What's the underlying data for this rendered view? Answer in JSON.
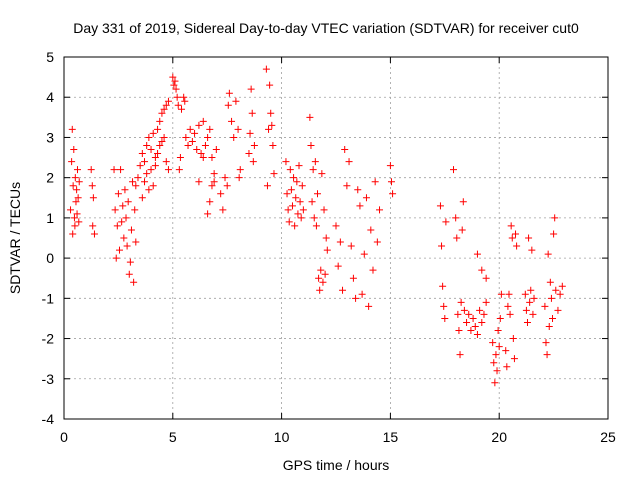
{
  "chart_data": {
    "type": "scatter",
    "title": "Day 331 of 2019, Sidereal Day-to-day VTEC variation (SDTVAR) for receiver cut0",
    "xlabel": "GPS time / hours",
    "ylabel": "SDTVAR / TECUs",
    "xlim": [
      0,
      25
    ],
    "ylim": [
      -4,
      5
    ],
    "xticks": [
      "0",
      "5",
      "10",
      "15",
      "20",
      "25"
    ],
    "yticks": [
      "-4",
      "-3",
      "-2",
      "-1",
      "0",
      "1",
      "2",
      "3",
      "4",
      "5"
    ],
    "grid": true,
    "marker": "+",
    "color": "#ff0000",
    "series": [
      {
        "name": "SDTVAR",
        "points": [
          [
            0.3,
            1.2
          ],
          [
            0.35,
            2.4
          ],
          [
            0.38,
            3.2
          ],
          [
            0.4,
            0.6
          ],
          [
            0.42,
            1.8
          ],
          [
            0.45,
            2.7
          ],
          [
            0.48,
            1.0
          ],
          [
            0.5,
            0.8
          ],
          [
            0.52,
            2.0
          ],
          [
            0.55,
            1.4
          ],
          [
            0.58,
            1.7
          ],
          [
            0.6,
            1.1
          ],
          [
            0.62,
            2.2
          ],
          [
            0.65,
            1.5
          ],
          [
            0.68,
            0.9
          ],
          [
            0.7,
            1.9
          ],
          [
            1.25,
            2.2
          ],
          [
            1.3,
            1.8
          ],
          [
            1.32,
            0.8
          ],
          [
            1.35,
            1.5
          ],
          [
            1.4,
            0.6
          ],
          [
            2.3,
            2.2
          ],
          [
            2.35,
            1.2
          ],
          [
            2.4,
            0.0
          ],
          [
            2.45,
            0.8
          ],
          [
            2.5,
            1.6
          ],
          [
            2.55,
            0.2
          ],
          [
            2.6,
            2.2
          ],
          [
            2.65,
            0.9
          ],
          [
            2.7,
            1.3
          ],
          [
            2.75,
            0.5
          ],
          [
            2.8,
            1.7
          ],
          [
            2.85,
            1.0
          ],
          [
            2.9,
            0.3
          ],
          [
            2.95,
            1.4
          ],
          [
            3.0,
            -0.4
          ],
          [
            3.05,
            -0.1
          ],
          [
            3.1,
            0.7
          ],
          [
            3.15,
            1.9
          ],
          [
            3.2,
            -0.6
          ],
          [
            3.25,
            1.2
          ],
          [
            3.3,
            0.4
          ],
          [
            3.3,
            1.8
          ],
          [
            3.4,
            2.0
          ],
          [
            3.5,
            2.3
          ],
          [
            3.6,
            2.6
          ],
          [
            3.7,
            2.4
          ],
          [
            3.8,
            2.8
          ],
          [
            3.9,
            3.0
          ],
          [
            4.0,
            2.7
          ],
          [
            4.1,
            3.1
          ],
          [
            4.2,
            2.5
          ],
          [
            4.3,
            3.2
          ],
          [
            4.4,
            3.4
          ],
          [
            4.5,
            3.6
          ],
          [
            4.6,
            3.7
          ],
          [
            4.7,
            3.8
          ],
          [
            4.8,
            3.9
          ],
          [
            3.6,
            1.5
          ],
          [
            3.7,
            1.9
          ],
          [
            3.8,
            2.1
          ],
          [
            3.9,
            1.7
          ],
          [
            4.0,
            2.2
          ],
          [
            4.1,
            1.8
          ],
          [
            4.2,
            2.3
          ],
          [
            4.3,
            2.6
          ],
          [
            4.4,
            2.8
          ],
          [
            4.5,
            2.9
          ],
          [
            4.6,
            3.0
          ],
          [
            4.7,
            2.4
          ],
          [
            4.8,
            2.2
          ],
          [
            5.0,
            4.5
          ],
          [
            5.05,
            4.3
          ],
          [
            5.1,
            4.4
          ],
          [
            5.15,
            4.2
          ],
          [
            5.2,
            4.0
          ],
          [
            5.25,
            3.8
          ],
          [
            5.3,
            2.2
          ],
          [
            5.35,
            2.5
          ],
          [
            5.4,
            3.7
          ],
          [
            5.5,
            4.0
          ],
          [
            5.55,
            3.9
          ],
          [
            5.6,
            3.0
          ],
          [
            5.7,
            2.8
          ],
          [
            5.8,
            3.2
          ],
          [
            5.9,
            2.9
          ],
          [
            6.0,
            3.1
          ],
          [
            6.1,
            2.7
          ],
          [
            6.2,
            3.3
          ],
          [
            6.3,
            2.6
          ],
          [
            6.4,
            3.4
          ],
          [
            6.5,
            2.8
          ],
          [
            6.6,
            3.0
          ],
          [
            6.7,
            3.2
          ],
          [
            6.8,
            2.5
          ],
          [
            6.9,
            1.9
          ],
          [
            7.0,
            2.7
          ],
          [
            6.2,
            1.9
          ],
          [
            6.4,
            2.5
          ],
          [
            6.6,
            1.1
          ],
          [
            6.7,
            1.4
          ],
          [
            6.8,
            1.8
          ],
          [
            6.9,
            2.1
          ],
          [
            7.2,
            1.6
          ],
          [
            7.3,
            1.2
          ],
          [
            7.4,
            2.0
          ],
          [
            7.5,
            1.8
          ],
          [
            7.55,
            3.8
          ],
          [
            7.6,
            4.1
          ],
          [
            7.7,
            3.4
          ],
          [
            7.8,
            3.0
          ],
          [
            7.9,
            3.9
          ],
          [
            8.0,
            3.2
          ],
          [
            8.05,
            2.0
          ],
          [
            8.1,
            2.2
          ],
          [
            8.5,
            2.6
          ],
          [
            8.55,
            3.1
          ],
          [
            8.6,
            4.2
          ],
          [
            8.65,
            3.6
          ],
          [
            8.7,
            2.4
          ],
          [
            8.75,
            2.8
          ],
          [
            9.3,
            4.7
          ],
          [
            9.35,
            1.8
          ],
          [
            9.4,
            3.2
          ],
          [
            9.45,
            4.3
          ],
          [
            9.5,
            3.6
          ],
          [
            9.55,
            3.3
          ],
          [
            9.6,
            2.8
          ],
          [
            9.65,
            2.1
          ],
          [
            10.2,
            2.4
          ],
          [
            10.25,
            1.6
          ],
          [
            10.3,
            1.2
          ],
          [
            10.35,
            0.9
          ],
          [
            10.4,
            2.2
          ],
          [
            10.45,
            1.7
          ],
          [
            10.5,
            1.3
          ],
          [
            10.55,
            2.0
          ],
          [
            10.6,
            0.8
          ],
          [
            10.65,
            1.5
          ],
          [
            10.7,
            1.9
          ],
          [
            10.75,
            1.1
          ],
          [
            10.8,
            2.3
          ],
          [
            10.85,
            1.4
          ],
          [
            10.9,
            1.0
          ],
          [
            10.95,
            1.8
          ],
          [
            11.0,
            1.2
          ],
          [
            11.3,
            3.5
          ],
          [
            11.35,
            2.8
          ],
          [
            11.4,
            1.4
          ],
          [
            11.45,
            2.2
          ],
          [
            11.5,
            1.0
          ],
          [
            11.55,
            2.4
          ],
          [
            11.6,
            0.8
          ],
          [
            11.65,
            1.6
          ],
          [
            11.7,
            -0.5
          ],
          [
            11.75,
            -0.8
          ],
          [
            11.8,
            -0.3
          ],
          [
            11.85,
            2.1
          ],
          [
            11.9,
            -0.6
          ],
          [
            11.95,
            1.2
          ],
          [
            12.0,
            -0.4
          ],
          [
            12.05,
            0.5
          ],
          [
            12.1,
            0.2
          ],
          [
            12.5,
            0.8
          ],
          [
            12.6,
            -0.2
          ],
          [
            12.7,
            0.4
          ],
          [
            12.8,
            -0.8
          ],
          [
            12.9,
            2.7
          ],
          [
            13.0,
            1.8
          ],
          [
            13.1,
            2.4
          ],
          [
            13.2,
            0.3
          ],
          [
            13.3,
            -0.5
          ],
          [
            13.4,
            -1.0
          ],
          [
            13.5,
            1.7
          ],
          [
            13.6,
            1.3
          ],
          [
            13.7,
            -0.9
          ],
          [
            13.8,
            0.1
          ],
          [
            13.9,
            1.5
          ],
          [
            14.0,
            -1.2
          ],
          [
            14.1,
            0.7
          ],
          [
            14.2,
            -0.3
          ],
          [
            14.3,
            1.9
          ],
          [
            14.4,
            0.4
          ],
          [
            14.5,
            1.2
          ],
          [
            15.0,
            2.3
          ],
          [
            15.05,
            1.9
          ],
          [
            15.1,
            1.6
          ],
          [
            17.3,
            1.3
          ],
          [
            17.35,
            0.3
          ],
          [
            17.4,
            -0.7
          ],
          [
            17.45,
            -1.2
          ],
          [
            17.5,
            -1.5
          ],
          [
            17.55,
            0.9
          ],
          [
            17.9,
            2.2
          ],
          [
            18.0,
            1.0
          ],
          [
            18.05,
            0.5
          ],
          [
            18.1,
            -1.4
          ],
          [
            18.15,
            -1.8
          ],
          [
            18.2,
            -2.4
          ],
          [
            18.25,
            -1.1
          ],
          [
            18.3,
            0.7
          ],
          [
            18.35,
            1.4
          ],
          [
            18.4,
            -1.3
          ],
          [
            18.5,
            -1.6
          ],
          [
            18.6,
            -1.4
          ],
          [
            18.7,
            -1.8
          ],
          [
            18.8,
            -1.5
          ],
          [
            18.9,
            -1.7
          ],
          [
            19.0,
            -1.9
          ],
          [
            19.1,
            -1.3
          ],
          [
            19.2,
            -1.6
          ],
          [
            19.3,
            -1.4
          ],
          [
            19.4,
            -1.1
          ],
          [
            19.0,
            0.1
          ],
          [
            19.2,
            -0.3
          ],
          [
            19.4,
            -0.5
          ],
          [
            19.7,
            -2.1
          ],
          [
            19.75,
            -2.6
          ],
          [
            19.8,
            -3.1
          ],
          [
            19.85,
            -2.4
          ],
          [
            19.9,
            -2.8
          ],
          [
            19.95,
            -1.8
          ],
          [
            20.0,
            -2.2
          ],
          [
            20.05,
            -1.5
          ],
          [
            20.1,
            -0.9
          ],
          [
            20.3,
            -2.3
          ],
          [
            20.35,
            -2.7
          ],
          [
            20.4,
            -1.2
          ],
          [
            20.45,
            -0.9
          ],
          [
            20.5,
            -1.4
          ],
          [
            20.55,
            0.8
          ],
          [
            20.6,
            0.5
          ],
          [
            20.65,
            -2.0
          ],
          [
            20.7,
            -2.5
          ],
          [
            20.75,
            0.6
          ],
          [
            20.8,
            0.3
          ],
          [
            21.2,
            -0.9
          ],
          [
            21.25,
            -1.3
          ],
          [
            21.3,
            -1.6
          ],
          [
            21.35,
            0.5
          ],
          [
            21.4,
            -1.1
          ],
          [
            21.45,
            -0.8
          ],
          [
            21.5,
            0.2
          ],
          [
            21.55,
            -1.4
          ],
          [
            21.6,
            -1.0
          ],
          [
            22.1,
            -1.2
          ],
          [
            22.15,
            -2.1
          ],
          [
            22.2,
            -2.4
          ],
          [
            22.25,
            0.1
          ],
          [
            22.3,
            -1.7
          ],
          [
            22.35,
            -0.6
          ],
          [
            22.4,
            -1.0
          ],
          [
            22.45,
            -1.5
          ],
          [
            22.5,
            0.6
          ],
          [
            22.55,
            1.0
          ],
          [
            22.6,
            -0.8
          ],
          [
            22.7,
            -1.3
          ],
          [
            22.8,
            -0.9
          ],
          [
            22.9,
            -0.7
          ]
        ]
      }
    ]
  }
}
